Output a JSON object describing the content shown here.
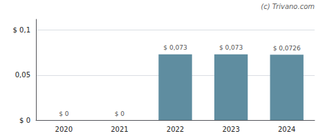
{
  "chart_data": {
    "type": "bar",
    "categories": [
      "2020",
      "2021",
      "2022",
      "2023",
      "2024"
    ],
    "values": [
      0,
      0,
      0.073,
      0.073,
      0.0726
    ],
    "value_labels": [
      "$ 0",
      "$ 0",
      "$ 0,073",
      "$ 0,073",
      "$ 0,0726"
    ],
    "data_labels": true,
    "color": "#5f8da0",
    "ylim": [
      0,
      0.112
    ],
    "yticks": [
      {
        "value": 0,
        "label": "$ 0"
      },
      {
        "value": 0.05,
        "label": "0,05"
      },
      {
        "value": 0.1,
        "label": "$ 0,1"
      }
    ],
    "grid": true,
    "annotations": [
      "(c) Trivano.com"
    ]
  }
}
